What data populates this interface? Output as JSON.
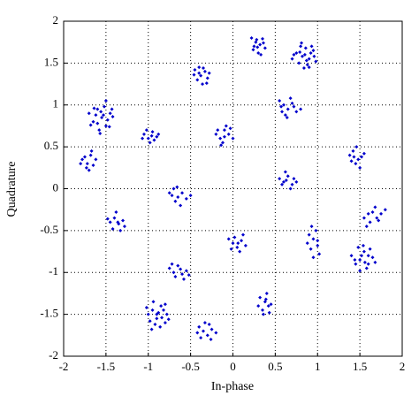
{
  "chart_data": {
    "type": "scatter",
    "x_label": "In-phase",
    "y_label": "Quadrature",
    "xlim": [
      -2,
      2
    ],
    "ylim": [
      -2,
      2
    ],
    "xticks": [
      -2,
      -1.5,
      -1,
      -0.5,
      0,
      0.5,
      1,
      1.5,
      2
    ],
    "yticks": [
      -2,
      -1.5,
      -1,
      -0.5,
      0,
      0.5,
      1,
      1.5,
      2
    ],
    "grid": true,
    "color": "#0000cc",
    "x": [
      0.22,
      0.28,
      0.35,
      0.25,
      0.32,
      0.38,
      0.3,
      0.27,
      0.36,
      0.33,
      0.24,
      0.29,
      0.7,
      0.75,
      0.8,
      0.85,
      0.9,
      0.95,
      0.78,
      0.88,
      0.82,
      0.92,
      0.98,
      0.86,
      0.72,
      0.84,
      0.93,
      0.79,
      0.87,
      0.96,
      0.81,
      0.9,
      -0.45,
      -0.4,
      -0.33,
      -0.38,
      -0.3,
      -0.42,
      -0.36,
      -0.28,
      -0.46,
      -0.35,
      -0.4,
      -0.31,
      -1.7,
      -1.65,
      -1.6,
      -1.55,
      -1.5,
      -1.45,
      -1.58,
      -1.62,
      -1.52,
      -1.48,
      -1.42,
      -1.68,
      -1.56,
      -1.5,
      -1.6,
      -1.46,
      -1.53,
      -1.64,
      -1.57,
      -1.43,
      0.55,
      0.6,
      0.65,
      0.7,
      0.75,
      0.62,
      0.68,
      0.58,
      0.72,
      0.8,
      0.64,
      0.57,
      -1.05,
      -1.0,
      -0.95,
      -0.9,
      -0.98,
      -0.93,
      -1.02,
      -0.88,
      -0.96,
      -1.07,
      -0.2,
      -0.15,
      -0.1,
      -0.05,
      -0.12,
      0.0,
      -0.08,
      -0.18,
      -0.03,
      -0.1,
      -0.14,
      -1.78,
      -1.72,
      -1.68,
      -1.65,
      -1.7,
      -1.75,
      -1.62,
      -1.73,
      -1.67,
      -1.8,
      1.38,
      1.42,
      1.48,
      1.45,
      1.52,
      1.4,
      1.46,
      1.5,
      1.43,
      1.55,
      0.55,
      0.6,
      0.65,
      0.7,
      0.62,
      0.72,
      0.68,
      0.58,
      0.75,
      0.63,
      -0.75,
      -0.7,
      -0.65,
      -0.6,
      -0.68,
      -0.55,
      -0.72,
      -0.62,
      -0.5,
      -0.66,
      -1.45,
      -1.4,
      -1.35,
      -1.3,
      -1.42,
      -1.38,
      -1.33,
      -1.48,
      -1.28,
      -1.36,
      1.55,
      1.6,
      1.65,
      1.7,
      1.75,
      1.62,
      1.8,
      1.68,
      1.58,
      1.72,
      -0.05,
      0.0,
      0.05,
      0.1,
      0.15,
      0.02,
      0.08,
      -0.02,
      0.12,
      0.06,
      0.9,
      0.95,
      1.0,
      0.92,
      0.98,
      0.88,
      1.02,
      0.95,
      0.93,
      1.0,
      1.4,
      1.45,
      1.5,
      1.55,
      1.6,
      1.65,
      1.48,
      1.58,
      1.52,
      1.62,
      1.44,
      1.56,
      1.68,
      1.5,
      1.54,
      1.6,
      -0.75,
      -0.7,
      -0.65,
      -0.6,
      -0.55,
      -0.68,
      -0.58,
      -0.72,
      -0.62,
      -0.52,
      0.32,
      0.38,
      0.42,
      0.35,
      0.4,
      0.45,
      0.36,
      0.3,
      0.43,
      0.39,
      -1.0,
      -0.95,
      -0.9,
      -0.85,
      -0.8,
      -0.92,
      -0.88,
      -0.78,
      -0.98,
      -0.82,
      -0.86,
      -0.94,
      -0.76,
      -1.02,
      -0.9,
      -0.84,
      -0.96,
      -0.8,
      -0.4,
      -0.35,
      -0.3,
      -0.25,
      -0.38,
      -0.28,
      -0.2,
      -0.42,
      -0.33,
      -0.26
    ],
    "values": [
      1.8,
      1.78,
      1.79,
      1.7,
      1.72,
      1.68,
      1.62,
      1.75,
      1.74,
      1.6,
      1.66,
      1.69,
      1.55,
      1.62,
      1.7,
      1.6,
      1.55,
      1.65,
      1.5,
      1.48,
      1.58,
      1.62,
      1.52,
      1.68,
      1.6,
      1.44,
      1.7,
      1.63,
      1.53,
      1.58,
      1.74,
      1.45,
      1.42,
      1.45,
      1.4,
      1.35,
      1.32,
      1.3,
      1.25,
      1.38,
      1.36,
      1.44,
      1.38,
      1.26,
      0.9,
      0.8,
      0.95,
      0.85,
      0.75,
      0.9,
      0.7,
      0.88,
      0.98,
      0.82,
      0.86,
      0.76,
      0.92,
      1.05,
      0.78,
      0.74,
      0.88,
      0.96,
      0.66,
      0.95,
      1.05,
      1.0,
      0.95,
      1.02,
      0.92,
      0.88,
      1.08,
      0.92,
      0.98,
      0.95,
      0.85,
      0.98,
      0.65,
      0.6,
      0.68,
      0.62,
      0.55,
      0.58,
      0.7,
      0.65,
      0.63,
      0.6,
      0.65,
      0.6,
      0.7,
      0.65,
      0.55,
      0.6,
      0.75,
      0.7,
      0.72,
      0.62,
      0.52,
      0.35,
      0.3,
      0.4,
      0.28,
      0.22,
      0.38,
      0.35,
      0.25,
      0.45,
      0.3,
      0.4,
      0.45,
      0.35,
      0.3,
      0.38,
      0.33,
      0.5,
      0.25,
      0.38,
      0.42,
      0.12,
      0.08,
      0.15,
      0.05,
      0.2,
      0.12,
      0.0,
      0.05,
      0.08,
      0.1,
      -0.05,
      0.0,
      -0.1,
      -0.05,
      -0.15,
      -0.12,
      -0.08,
      -0.2,
      -0.08,
      0.02,
      -0.4,
      -0.35,
      -0.42,
      -0.38,
      -0.48,
      -0.28,
      -0.5,
      -0.36,
      -0.45,
      -0.4,
      -0.35,
      -0.3,
      -0.28,
      -0.35,
      -0.3,
      -0.4,
      -0.25,
      -0.22,
      -0.45,
      -0.38,
      -0.6,
      -0.65,
      -0.7,
      -0.62,
      -0.68,
      -0.58,
      -0.75,
      -0.72,
      -0.55,
      -0.65,
      -0.55,
      -0.6,
      -0.68,
      -0.72,
      -0.5,
      -0.65,
      -0.78,
      -0.82,
      -0.45,
      -0.62,
      -0.8,
      -0.9,
      -0.85,
      -0.75,
      -0.9,
      -0.82,
      -0.7,
      -0.95,
      -0.8,
      -0.72,
      -0.85,
      -0.88,
      -0.88,
      -0.98,
      -0.68,
      -0.8,
      -0.95,
      -1.0,
      -0.92,
      -1.02,
      -0.98,
      -1.05,
      -1.08,
      -0.9,
      -0.96,
      -1.03,
      -1.3,
      -1.35,
      -1.4,
      -1.45,
      -1.25,
      -1.38,
      -1.5,
      -1.4,
      -1.48,
      -1.32,
      -1.5,
      -1.45,
      -1.55,
      -1.4,
      -1.6,
      -1.62,
      -1.48,
      -1.5,
      -1.58,
      -1.45,
      -1.65,
      -1.35,
      -1.56,
      -1.42,
      -1.5,
      -1.54,
      -1.68,
      -1.38,
      -1.65,
      -1.7,
      -1.75,
      -1.68,
      -1.78,
      -1.62,
      -1.72,
      -1.72,
      -1.6,
      -1.8
    ]
  }
}
